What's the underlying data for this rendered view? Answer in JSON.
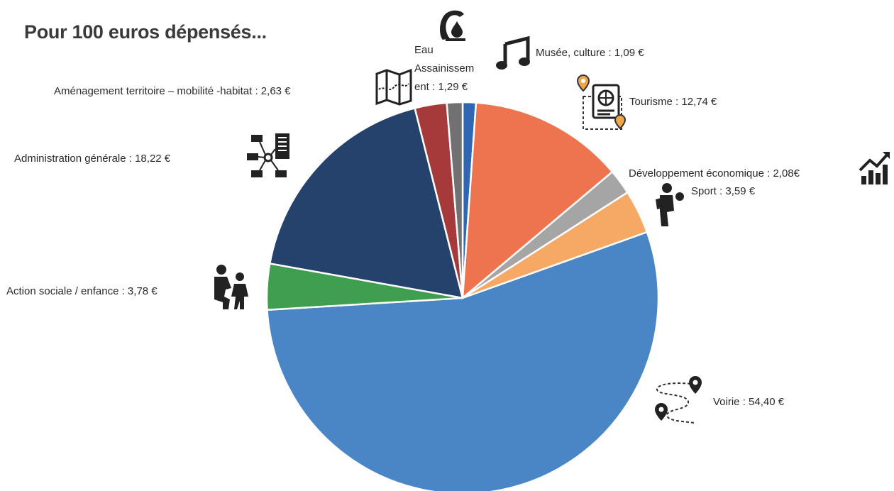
{
  "title": "Pour 100 euros dépensés...",
  "chart_data": {
    "type": "pie",
    "title": "Pour 100 euros dépensés...",
    "unit": "€",
    "slices": [
      {
        "category": "Musée, culture",
        "value": 1.09,
        "label": "Musée, culture : 1,09 €",
        "color": "#2f67b5",
        "icon": "music-note-icon"
      },
      {
        "category": "Tourisme",
        "value": 12.74,
        "label": "Tourisme : 12,74 €",
        "color": "#ee7450",
        "icon": "passport-icon"
      },
      {
        "category": "Développement économique",
        "value": 2.08,
        "label": "Développement économique : 2,08€",
        "color": "#a5a5a5",
        "icon": "growth-chart-icon"
      },
      {
        "category": "Sport",
        "value": 3.59,
        "label": "Sport : 3,59 €",
        "color": "#f5a964",
        "icon": "athlete-icon"
      },
      {
        "category": "Voirie",
        "value": 54.4,
        "label": "Voirie : 54,40 €",
        "color": "#4a86c6",
        "icon": "route-pins-icon"
      },
      {
        "category": "Action sociale / enfance",
        "value": 3.78,
        "label": "Action sociale / enfance : 3,78  €",
        "color": "#3f9e50",
        "icon": "parent-child-icon"
      },
      {
        "category": "Administration générale",
        "value": 18.22,
        "label": "Administration générale : 18,22 €",
        "color": "#25426c",
        "icon": "network-building-icon"
      },
      {
        "category": "Aménagement territoire – mobilité -habitat",
        "value": 2.63,
        "label": "Aménagement territoire – mobilité -habitat  : 2,63 €",
        "color": "#a63a3a",
        "icon": "folded-map-icon"
      },
      {
        "category": "Eau Assainissement",
        "value": 1.29,
        "label_lines": [
          "Eau",
          "Assainissem",
          "ent : 1,29 €"
        ],
        "color": "#717171",
        "icon": "water-drop-hand-icon"
      }
    ]
  }
}
